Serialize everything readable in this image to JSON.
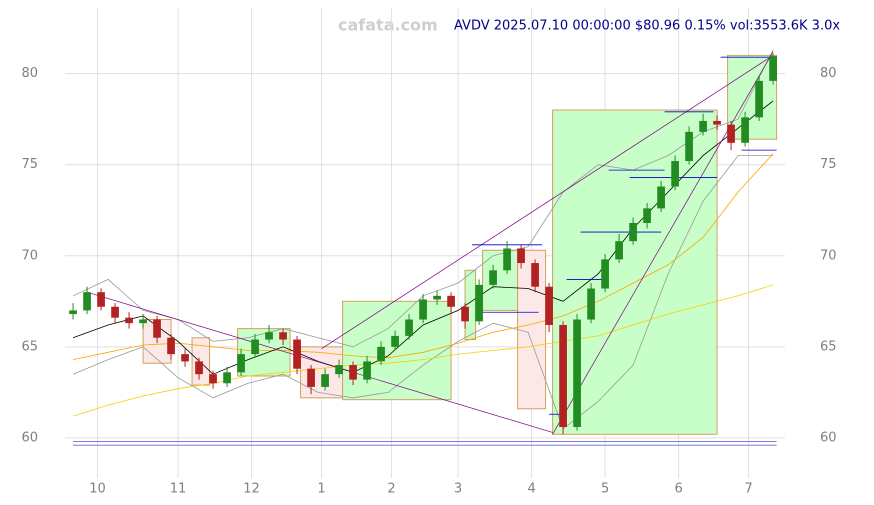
{
  "chart_data": {
    "type": "candlestick",
    "title": "AVDV 2025.07.10 00:00:00 $80.96 0.15% vol:3553.6K 3.0x",
    "watermark": "cafata.com",
    "x": [
      0,
      4,
      8,
      12,
      16,
      20,
      24,
      28,
      32,
      36,
      40,
      44,
      48,
      52,
      56,
      60,
      64,
      68,
      72,
      76,
      80,
      84,
      88,
      92,
      96,
      100,
      104,
      108,
      112,
      116,
      120,
      124,
      128,
      132,
      136,
      140,
      144,
      148,
      152,
      156,
      160,
      164,
      168,
      172,
      176,
      180,
      184,
      188,
      192,
      196,
      200
    ],
    "open": [
      66.8,
      67.0,
      68.0,
      67.2,
      66.6,
      66.3,
      66.5,
      65.5,
      64.6,
      64.2,
      63.5,
      63.0,
      63.6,
      64.6,
      65.4,
      65.8,
      65.4,
      63.8,
      62.8,
      63.5,
      64.0,
      63.2,
      64.2,
      65.0,
      65.6,
      66.5,
      67.6,
      67.8,
      67.2,
      66.4,
      68.4,
      69.2,
      70.4,
      69.6,
      68.3,
      66.2,
      60.6,
      66.5,
      68.2,
      69.8,
      70.8,
      71.8,
      72.6,
      73.8,
      75.2,
      76.8,
      77.4,
      77.2,
      76.2,
      77.6,
      79.6
    ],
    "high": [
      67.4,
      68.3,
      68.2,
      67.4,
      66.9,
      66.8,
      66.7,
      65.7,
      64.9,
      64.4,
      63.7,
      63.9,
      64.9,
      65.7,
      66.2,
      66.0,
      65.6,
      64.0,
      63.8,
      64.3,
      64.2,
      64.5,
      65.3,
      65.9,
      66.8,
      67.9,
      68.1,
      68.0,
      67.4,
      68.7,
      69.5,
      70.8,
      70.6,
      69.8,
      68.5,
      66.4,
      66.8,
      68.5,
      70.1,
      71.2,
      72.1,
      72.9,
      74.1,
      75.5,
      77.1,
      77.8,
      77.7,
      77.4,
      77.9,
      79.9,
      81.1
    ],
    "low": [
      66.5,
      66.8,
      67.0,
      66.3,
      66.0,
      66.0,
      65.2,
      64.3,
      63.9,
      63.2,
      62.7,
      62.8,
      63.4,
      64.4,
      65.2,
      65.1,
      63.5,
      62.4,
      62.6,
      63.3,
      62.9,
      63.0,
      64.0,
      64.8,
      65.4,
      66.3,
      67.3,
      66.9,
      66.0,
      66.2,
      68.2,
      69.0,
      69.3,
      68.0,
      65.8,
      60.2,
      60.4,
      66.3,
      68.0,
      69.6,
      70.6,
      71.5,
      72.4,
      73.6,
      75.0,
      76.6,
      76.9,
      75.8,
      76.0,
      77.4,
      79.4
    ],
    "close": [
      67.0,
      68.0,
      67.2,
      66.6,
      66.3,
      66.5,
      65.5,
      64.6,
      64.2,
      63.5,
      63.0,
      63.6,
      64.6,
      65.4,
      65.8,
      65.4,
      63.8,
      62.8,
      63.5,
      64.0,
      63.2,
      64.2,
      65.0,
      65.6,
      66.5,
      67.6,
      67.8,
      67.2,
      66.4,
      68.4,
      69.2,
      70.4,
      69.6,
      68.3,
      66.2,
      60.6,
      66.5,
      68.2,
      69.8,
      70.8,
      71.8,
      72.6,
      73.8,
      75.2,
      76.8,
      77.4,
      77.2,
      76.2,
      77.6,
      79.6,
      80.96
    ],
    "up_color": "#228b22",
    "down_color": "#b22222",
    "line_x": [
      0,
      10,
      20,
      30,
      40,
      50,
      60,
      70,
      80,
      90,
      100,
      110,
      120,
      130,
      140,
      150,
      160,
      170,
      180,
      190,
      200
    ],
    "lines": [
      {
        "color": "#999999",
        "values": [
          67.8,
          68.7,
          67.0,
          66.5,
          65.3,
          65.5,
          66.0,
          65.5,
          65.0,
          66.0,
          67.8,
          68.5,
          70.0,
          70.5,
          73.5,
          75.0,
          74.7,
          75.5,
          76.8,
          77.5,
          81.3
        ]
      },
      {
        "color": "#999999",
        "values": [
          63.5,
          64.3,
          65.0,
          63.3,
          62.2,
          63.0,
          63.5,
          62.5,
          62.2,
          62.5,
          64.0,
          65.3,
          66.3,
          65.8,
          60.5,
          62.0,
          64.0,
          69.0,
          73.0,
          75.5,
          75.5
        ]
      },
      {
        "color": "#f5d000",
        "values": [
          61.2,
          61.8,
          62.3,
          62.7,
          63.0,
          63.4,
          63.6,
          63.8,
          64.0,
          64.1,
          64.3,
          64.6,
          64.8,
          65.0,
          65.3,
          65.6,
          66.2,
          66.8,
          67.3,
          67.8,
          68.4
        ]
      },
      {
        "color": "#ffa500",
        "values": [
          64.3,
          64.7,
          65.1,
          65.2,
          65.0,
          64.8,
          64.8,
          64.7,
          64.5,
          64.4,
          64.7,
          65.2,
          65.8,
          66.2,
          66.7,
          67.5,
          68.5,
          69.5,
          71.0,
          73.5,
          75.6
        ]
      },
      {
        "color": "#000000",
        "values": [
          65.5,
          66.2,
          66.7,
          65.3,
          63.5,
          64.3,
          65.0,
          64.2,
          63.6,
          64.5,
          66.2,
          67.0,
          68.3,
          68.2,
          67.5,
          69.0,
          71.5,
          73.5,
          75.5,
          77.0,
          78.5
        ]
      }
    ],
    "boxes": [
      {
        "x0": 20,
        "x1": 28,
        "y0": 64.1,
        "y1": 66.5,
        "color": "#fde8e8"
      },
      {
        "x0": 34,
        "x1": 39,
        "y0": 62.9,
        "y1": 65.5,
        "color": "#fde8e8"
      },
      {
        "x0": 47,
        "x1": 62,
        "y0": 63.4,
        "y1": 66.0,
        "color": "#c8ffc8"
      },
      {
        "x0": 65,
        "x1": 77,
        "y0": 62.2,
        "y1": 65.0,
        "color": "#fde8e8"
      },
      {
        "x0": 77,
        "x1": 108,
        "y0": 62.1,
        "y1": 67.5,
        "color": "#c8ffc8"
      },
      {
        "x0": 112,
        "x1": 115,
        "y0": 65.4,
        "y1": 69.2,
        "color": "#c8ffc8"
      },
      {
        "x0": 117,
        "x1": 127,
        "y0": 67.0,
        "y1": 70.3,
        "color": "#c8ffc8"
      },
      {
        "x0": 127,
        "x1": 135,
        "y0": 61.6,
        "y1": 70.3,
        "color": "#fde8e8"
      },
      {
        "x0": 137,
        "x1": 184,
        "y0": 60.2,
        "y1": 78.0,
        "color": "#c8ffc8"
      },
      {
        "x0": 187,
        "x1": 201,
        "y0": 76.4,
        "y1": 81.0,
        "color": "#c8ffc8"
      }
    ],
    "box_border": "#d2a060",
    "trendlines": [
      {
        "x0": 4,
        "y0": 68.0,
        "x1": 137,
        "y1": 60.3,
        "color": "#800080"
      },
      {
        "x0": 71,
        "y0": 64.9,
        "x1": 200,
        "y1": 81.0,
        "color": "#800080"
      },
      {
        "x0": 137,
        "y0": 60.2,
        "x1": 200,
        "y1": 81.2,
        "color": "#800080"
      }
    ],
    "hlines": [
      {
        "x0": 114,
        "x1": 134,
        "y": 70.6,
        "color": "#0000cd"
      },
      {
        "x0": 116,
        "x1": 133,
        "y": 66.9,
        "color": "#0000cd"
      },
      {
        "x0": 136,
        "x1": 140,
        "y": 61.3,
        "color": "#0000cd"
      },
      {
        "x0": 141,
        "x1": 152,
        "y": 68.7,
        "color": "#0000cd"
      },
      {
        "x0": 145,
        "x1": 168,
        "y": 71.3,
        "color": "#0000cd"
      },
      {
        "x0": 153,
        "x1": 169,
        "y": 74.7,
        "color": "#0000cd"
      },
      {
        "x0": 159,
        "x1": 184,
        "y": 74.3,
        "color": "#0000cd"
      },
      {
        "x0": 169,
        "x1": 183,
        "y": 77.9,
        "color": "#0000cd"
      },
      {
        "x0": 185,
        "x1": 199,
        "y": 80.9,
        "color": "#0000cd"
      },
      {
        "x0": 191,
        "x1": 201,
        "y": 75.8,
        "color": "#0000cd"
      },
      {
        "x0": 0,
        "x1": 201,
        "y": 59.8,
        "color": "#6a6acd"
      },
      {
        "x0": 0,
        "x1": 201,
        "y": 59.6,
        "color": "#6a6acd"
      }
    ],
    "xlim": [
      -2.3,
      203.4
    ],
    "xticks": [
      {
        "value": 7,
        "label": "10"
      },
      {
        "value": 30,
        "label": "11"
      },
      {
        "value": 51,
        "label": "12"
      },
      {
        "value": 71,
        "label": "1"
      },
      {
        "value": 91,
        "label": "2"
      },
      {
        "value": 110,
        "label": "3"
      },
      {
        "value": 131,
        "label": "4"
      },
      {
        "value": 152,
        "label": "5"
      },
      {
        "value": 173,
        "label": "6"
      },
      {
        "value": 193,
        "label": "7"
      }
    ],
    "ylim": [
      57.8,
      83.6
    ],
    "yticks": [
      60,
      65,
      70,
      75,
      80
    ],
    "grid": true
  }
}
